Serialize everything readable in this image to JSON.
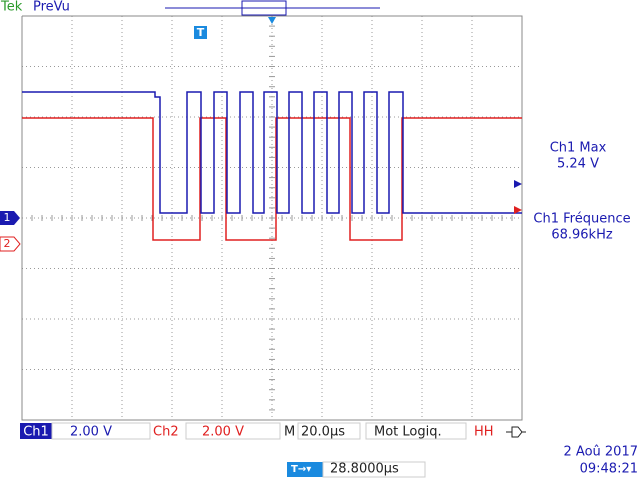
{
  "header": {
    "brand": "Tek",
    "mode": "PreVu"
  },
  "markers": {
    "trigger": "T",
    "ch1": "1",
    "ch2": "2"
  },
  "measurements": [
    {
      "label": "Ch1 Max",
      "value": "5.24 V"
    },
    {
      "label": "Ch1 Fréquence",
      "value": "68.96kHz"
    }
  ],
  "status_bar": {
    "ch1_label": "Ch1",
    "ch1_scale": "2.00 V",
    "ch2_label": "Ch2",
    "ch2_scale": "2.00 V",
    "timebase_label": "M",
    "timebase": "20.0µs",
    "trigger_type": "Mot Logiq.",
    "trigger_pattern": "HH"
  },
  "footer": {
    "trigger_position": "28.8000µs",
    "date": "2 Aoû 2017",
    "time": "09:48:21"
  }
}
